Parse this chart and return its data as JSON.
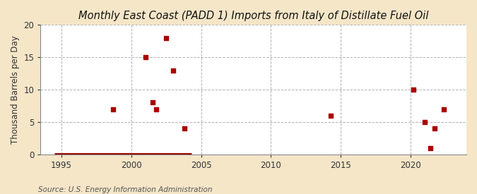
{
  "title": "Monthly East Coast (PADD 1) Imports from Italy of Distillate Fuel Oil",
  "ylabel": "Thousand Barrels per Day",
  "source": "Source: U.S. Energy Information Administration",
  "figure_bg": "#f5e6c8",
  "plot_bg": "#ffffff",
  "marker_color": "#aa0000",
  "zero_line_color": "#990000",
  "grid_color": "#aaaaaa",
  "xlim": [
    1993.5,
    2024
  ],
  "ylim": [
    0,
    20
  ],
  "yticks": [
    0,
    5,
    10,
    15,
    20
  ],
  "xticks": [
    1995,
    2000,
    2005,
    2010,
    2015,
    2020
  ],
  "scatter_x": [
    1998.7,
    2001.0,
    2001.5,
    2001.8,
    2002.5,
    2003.0,
    2003.8,
    2014.3,
    2020.2,
    2021.0,
    2021.4,
    2021.7,
    2022.4
  ],
  "scatter_y": [
    7,
    15,
    8,
    7,
    18,
    13,
    4,
    6,
    10,
    5,
    1,
    4,
    7
  ],
  "zero_x_start": 1994.5,
  "zero_x_end": 2004.3,
  "title_fontsize": 10.5,
  "label_fontsize": 8.5,
  "tick_fontsize": 8.5,
  "source_fontsize": 7.5
}
